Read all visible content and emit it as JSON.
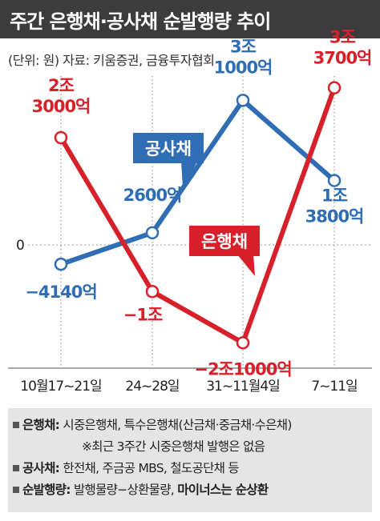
{
  "header": {
    "title": "주간 은행채·공사채 순발행량 추이"
  },
  "source": "(단위: 원) 자료: 키움증권, 금융투자협회",
  "chart_data": {
    "type": "line",
    "unit": "억원",
    "categories": [
      "10월17~21일",
      "24~28일",
      "31~11월4일",
      "7~11일"
    ],
    "ylim": [
      -30000,
      45000
    ],
    "zero_label": "0",
    "series": [
      {
        "name": "공사채",
        "color": "#2f6db5",
        "values": [
          -4140,
          2600,
          31000,
          13800
        ],
        "labels": [
          [
            "−4140억"
          ],
          [
            "2600억"
          ],
          [
            "3조",
            "1000억"
          ],
          [
            "1조",
            "3800억"
          ]
        ]
      },
      {
        "name": "은행채",
        "color": "#d6202a",
        "values": [
          23000,
          -10000,
          -21000,
          33700
        ],
        "labels": [
          [
            "2조",
            "3000억"
          ],
          [
            "−1조"
          ],
          [
            "−2조1000억"
          ],
          [
            "3조",
            "3700억"
          ]
        ]
      }
    ]
  },
  "notes": {
    "bank": {
      "label": "은행채:",
      "text": "시중은행채, 특수은행채(산금채·중금채·수은채)"
    },
    "bank_sub": "※최근 3주간 시중은행채 발행은 없음",
    "public": {
      "label": "공사채:",
      "text": "한전채, 주금공 MBS, 철도공단채 등"
    },
    "net": {
      "label": "순발행량:",
      "text": "발행물량−상환물량,",
      "bold": "마이너스는 순상환"
    }
  },
  "colors": {
    "header_bg": "#3c3c3c",
    "notes_bg": "#e5e5e5",
    "grid": "#9a9a9a"
  }
}
